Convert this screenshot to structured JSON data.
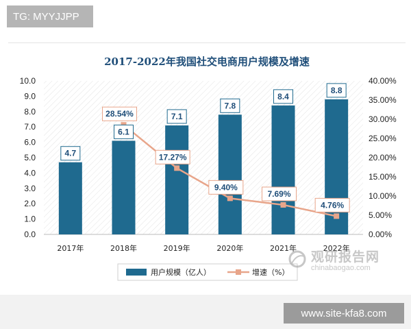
{
  "badges": {
    "tg": "TG: MYYJJPP",
    "site": "www.site-kfa8.com"
  },
  "watermark": {
    "cn": "观研报告网",
    "en": "chinabaogao.com"
  },
  "colors": {
    "bar": "#1f6a8f",
    "line": "#e8a58a",
    "marker": "#e8a58a",
    "title": "#1f4e79"
  },
  "chart_data": {
    "type": "bar",
    "title": "2017-2022年我国社交电商用户规模及增速",
    "categories": [
      "2017年",
      "2018年",
      "2019年",
      "2020年",
      "2021年",
      "2022年"
    ],
    "series": [
      {
        "name": "用户规模（亿人）",
        "type": "bar",
        "axis": "left",
        "values": [
          4.7,
          6.1,
          7.1,
          7.8,
          8.4,
          8.8
        ],
        "labels": [
          "4.7",
          "6.1",
          "7.1",
          "7.8",
          "8.4",
          "8.8"
        ]
      },
      {
        "name": "增速（%）",
        "type": "line",
        "axis": "right",
        "values": [
          null,
          28.54,
          17.27,
          9.4,
          7.69,
          4.76
        ],
        "labels": [
          "",
          "28.54%",
          "17.27%",
          "9.40%",
          "7.69%",
          "4.76%"
        ]
      }
    ],
    "y_left": {
      "ylim": [
        0,
        10
      ],
      "ticks": [
        "0.0",
        "1.0",
        "2.0",
        "3.0",
        "4.0",
        "5.0",
        "6.0",
        "7.0",
        "8.0",
        "9.0",
        "10.0"
      ]
    },
    "y_right": {
      "ylim": [
        0,
        40
      ],
      "ticks": [
        "0.00%",
        "5.00%",
        "10.00%",
        "15.00%",
        "20.00%",
        "25.00%",
        "30.00%",
        "35.00%",
        "40.00%"
      ]
    },
    "grid": false,
    "legend": "bottom"
  }
}
